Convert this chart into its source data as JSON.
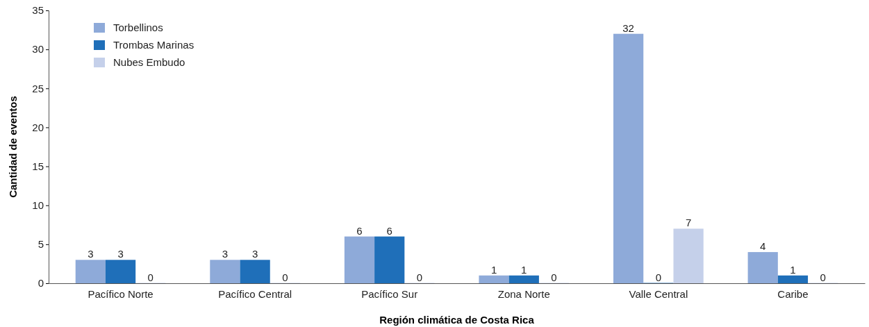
{
  "chart_data": {
    "type": "bar",
    "xlabel": "Región climática de Costa Rica",
    "ylabel": "Cantidad de eventos",
    "categories": [
      "Pacífico Norte",
      "Pacífico Central",
      "Pacífico Sur",
      "Zona Norte",
      "Valle Central",
      "Caribe"
    ],
    "series": [
      {
        "name": "Torbellinos",
        "color": "#8eaad9",
        "values": [
          3,
          3,
          6,
          1,
          32,
          4
        ]
      },
      {
        "name": "Trombas Marinas",
        "color": "#1f6fb9",
        "values": [
          3,
          3,
          6,
          1,
          0,
          1
        ]
      },
      {
        "name": "Nubes Embudo",
        "color": "#c5d0ea",
        "values": [
          0,
          0,
          0,
          0,
          7,
          0
        ]
      }
    ],
    "ylim": [
      0,
      35
    ],
    "yticks": [
      0,
      5,
      10,
      15,
      20,
      25,
      30,
      35
    ],
    "grid": false,
    "legend": "top left",
    "data_labels": true
  }
}
